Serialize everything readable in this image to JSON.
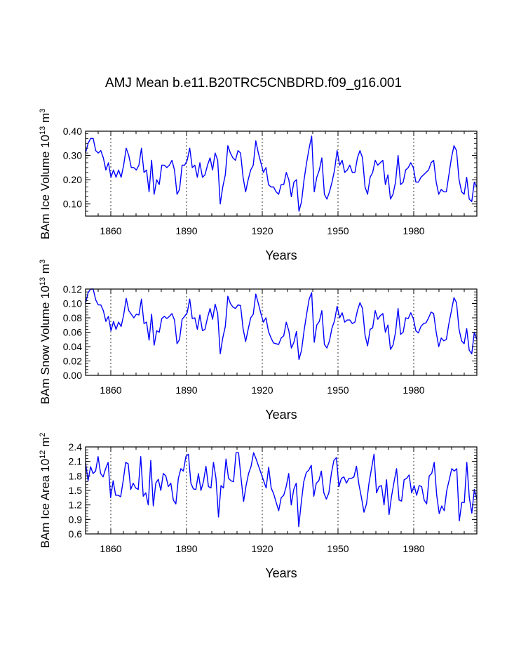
{
  "title": "AMJ Mean b.e11.B20TRC5CNBDRD.f09_g16.001",
  "chart_data": [
    {
      "type": "line",
      "name": "ice-volume",
      "xlabel": "Years",
      "ylabel": {
        "prefix": "BAm Ice Volume 10",
        "exp": "13",
        "unit": " m",
        "unit_exp": "3"
      },
      "x_start": 1850,
      "x_end": 2005,
      "xlim": [
        1850,
        2005
      ],
      "ylim": [
        0.05,
        0.4
      ],
      "xticks": [
        1860,
        1890,
        1920,
        1950,
        1980
      ],
      "xtick_labels": [
        "1860",
        "1890",
        "1920",
        "1950",
        "1980"
      ],
      "yticks": [
        0.1,
        0.2,
        0.3,
        0.4
      ],
      "ytick_labels": [
        "0.10",
        "0.20",
        "0.30",
        "0.40"
      ],
      "line_color": "#0000ff",
      "values": [
        0.31,
        0.35,
        0.37,
        0.37,
        0.32,
        0.31,
        0.32,
        0.29,
        0.24,
        0.27,
        0.21,
        0.24,
        0.21,
        0.24,
        0.21,
        0.26,
        0.33,
        0.3,
        0.25,
        0.25,
        0.24,
        0.26,
        0.33,
        0.23,
        0.24,
        0.15,
        0.28,
        0.14,
        0.2,
        0.18,
        0.26,
        0.26,
        0.25,
        0.26,
        0.28,
        0.24,
        0.14,
        0.16,
        0.26,
        0.26,
        0.28,
        0.33,
        0.25,
        0.26,
        0.21,
        0.27,
        0.21,
        0.22,
        0.26,
        0.29,
        0.24,
        0.31,
        0.28,
        0.1,
        0.17,
        0.22,
        0.34,
        0.31,
        0.29,
        0.28,
        0.32,
        0.31,
        0.21,
        0.15,
        0.2,
        0.24,
        0.26,
        0.36,
        0.31,
        0.27,
        0.23,
        0.25,
        0.18,
        0.17,
        0.17,
        0.15,
        0.14,
        0.18,
        0.18,
        0.23,
        0.2,
        0.13,
        0.19,
        0.2,
        0.07,
        0.11,
        0.2,
        0.27,
        0.33,
        0.38,
        0.15,
        0.21,
        0.24,
        0.29,
        0.14,
        0.12,
        0.15,
        0.19,
        0.24,
        0.32,
        0.26,
        0.28,
        0.23,
        0.24,
        0.26,
        0.23,
        0.23,
        0.29,
        0.32,
        0.29,
        0.17,
        0.14,
        0.21,
        0.23,
        0.28,
        0.26,
        0.27,
        0.28,
        0.18,
        0.22,
        0.12,
        0.14,
        0.19,
        0.3,
        0.18,
        0.19,
        0.24,
        0.25,
        0.27,
        0.25,
        0.19,
        0.19,
        0.21,
        0.22,
        0.23,
        0.24,
        0.27,
        0.28,
        0.19,
        0.14,
        0.16,
        0.15,
        0.15,
        0.22,
        0.29,
        0.34,
        0.32,
        0.2,
        0.15,
        0.14,
        0.21,
        0.12,
        0.11,
        0.19,
        0.17
      ]
    },
    {
      "type": "line",
      "name": "snow-volume",
      "xlabel": "Years",
      "ylabel": {
        "prefix": "BAm Snow Volume 10",
        "exp": "13",
        "unit": " m",
        "unit_exp": "3"
      },
      "x_start": 1850,
      "x_end": 2005,
      "xlim": [
        1850,
        2005
      ],
      "ylim": [
        0.0,
        0.12
      ],
      "xticks": [
        1860,
        1890,
        1920,
        1950,
        1980
      ],
      "xtick_labels": [
        "1860",
        "1890",
        "1920",
        "1950",
        "1980"
      ],
      "yticks": [
        0.0,
        0.02,
        0.04,
        0.06,
        0.08,
        0.1,
        0.12
      ],
      "ytick_labels": [
        "0.00",
        "0.02",
        "0.04",
        "0.06",
        "0.08",
        "0.10",
        "0.12"
      ],
      "line_color": "#0000ff",
      "values": [
        0.1,
        0.115,
        0.12,
        0.12,
        0.105,
        0.098,
        0.098,
        0.09,
        0.075,
        0.082,
        0.062,
        0.075,
        0.064,
        0.074,
        0.068,
        0.084,
        0.107,
        0.09,
        0.085,
        0.08,
        0.085,
        0.084,
        0.106,
        0.072,
        0.074,
        0.049,
        0.085,
        0.042,
        0.062,
        0.06,
        0.079,
        0.082,
        0.079,
        0.082,
        0.086,
        0.077,
        0.044,
        0.05,
        0.078,
        0.082,
        0.087,
        0.106,
        0.079,
        0.08,
        0.064,
        0.084,
        0.062,
        0.064,
        0.08,
        0.093,
        0.078,
        0.099,
        0.086,
        0.03,
        0.052,
        0.068,
        0.11,
        0.1,
        0.095,
        0.093,
        0.098,
        0.097,
        0.065,
        0.047,
        0.064,
        0.08,
        0.085,
        0.113,
        0.1,
        0.086,
        0.074,
        0.08,
        0.061,
        0.052,
        0.045,
        0.044,
        0.043,
        0.052,
        0.055,
        0.074,
        0.062,
        0.038,
        0.046,
        0.061,
        0.022,
        0.035,
        0.062,
        0.085,
        0.106,
        0.115,
        0.046,
        0.07,
        0.075,
        0.09,
        0.043,
        0.038,
        0.048,
        0.066,
        0.076,
        0.096,
        0.08,
        0.087,
        0.074,
        0.077,
        0.077,
        0.072,
        0.074,
        0.09,
        0.101,
        0.093,
        0.056,
        0.041,
        0.064,
        0.066,
        0.09,
        0.078,
        0.083,
        0.086,
        0.06,
        0.07,
        0.036,
        0.042,
        0.06,
        0.093,
        0.057,
        0.06,
        0.08,
        0.079,
        0.087,
        0.079,
        0.062,
        0.059,
        0.068,
        0.072,
        0.073,
        0.08,
        0.088,
        0.086,
        0.06,
        0.04,
        0.052,
        0.048,
        0.05,
        0.072,
        0.09,
        0.108,
        0.101,
        0.064,
        0.048,
        0.044,
        0.065,
        0.035,
        0.03,
        0.06,
        0.05
      ]
    },
    {
      "type": "line",
      "name": "ice-area",
      "xlabel": "Years",
      "ylabel": {
        "prefix": "BAm Ice Area 10",
        "exp": "12",
        "unit": " m",
        "unit_exp": "2"
      },
      "x_start": 1850,
      "x_end": 2005,
      "xlim": [
        1850,
        2005
      ],
      "ylim": [
        0.6,
        2.4
      ],
      "xticks": [
        1860,
        1890,
        1920,
        1950,
        1980
      ],
      "xtick_labels": [
        "1860",
        "1890",
        "1920",
        "1950",
        "1980"
      ],
      "yticks": [
        0.6,
        0.9,
        1.2,
        1.5,
        1.8,
        2.1,
        2.4
      ],
      "ytick_labels": [
        "0.6",
        "0.9",
        "1.2",
        "1.5",
        "1.8",
        "2.1",
        "2.4"
      ],
      "line_color": "#0000ff",
      "values": [
        2.07,
        1.7,
        1.99,
        1.85,
        1.9,
        2.2,
        1.85,
        1.78,
        1.95,
        2.08,
        1.35,
        1.7,
        1.4,
        1.4,
        1.37,
        1.7,
        2.08,
        2.05,
        1.52,
        1.65,
        1.55,
        1.52,
        2.2,
        1.38,
        1.45,
        1.2,
        2.12,
        1.18,
        1.65,
        1.73,
        1.5,
        1.85,
        1.8,
        1.58,
        1.65,
        1.3,
        1.22,
        1.75,
        1.95,
        1.9,
        2.2,
        2.25,
        1.65,
        1.53,
        1.52,
        1.85,
        1.5,
        1.68,
        2.0,
        1.58,
        1.55,
        2.08,
        1.75,
        0.95,
        1.6,
        1.55,
        2.15,
        1.75,
        1.7,
        1.68,
        2.28,
        2.28,
        1.75,
        1.27,
        1.6,
        1.85,
        2.0,
        2.28,
        2.15,
        2.0,
        1.85,
        1.7,
        1.55,
        1.98,
        1.55,
        1.43,
        1.25,
        1.08,
        1.35,
        1.4,
        1.58,
        1.85,
        1.2,
        1.52,
        1.65,
        0.75,
        1.25,
        1.68,
        1.87,
        1.92,
        2.02,
        1.38,
        1.65,
        1.7,
        1.9,
        1.45,
        1.32,
        1.45,
        1.85,
        2.12,
        2.18,
        1.58,
        1.75,
        1.78,
        1.65,
        1.75,
        1.75,
        1.78,
        2.0,
        1.62,
        1.35,
        1.05,
        1.22,
        1.65,
        1.95,
        2.25,
        1.45,
        1.58,
        1.6,
        1.2,
        1.72,
        1.0,
        1.38,
        1.68,
        1.95,
        1.3,
        1.28,
        1.72,
        1.75,
        1.82,
        1.45,
        1.6,
        1.4,
        1.6,
        1.58,
        1.3,
        1.22,
        1.8,
        1.85,
        2.08,
        1.4,
        1.02,
        1.18,
        1.08,
        1.5,
        1.72,
        1.95,
        1.9,
        1.95,
        0.87,
        1.25,
        1.25,
        2.08,
        1.35,
        1.03,
        1.52,
        1.32
      ]
    }
  ]
}
